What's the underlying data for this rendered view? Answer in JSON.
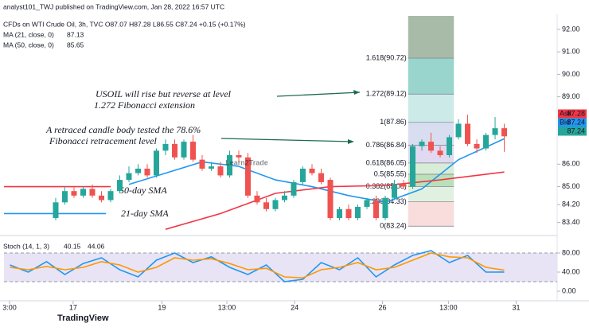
{
  "header": {
    "publisher": "analyst101_TWJ published on TradingView.com, Jan 28, 2022 16:57 UTC",
    "logo": "TradingView"
  },
  "chart_data": {
    "type": "candlestick",
    "symbol": "CFDs on WTI Crude Oil, 3h, TVC O87.07 H87.28 L86.55 C87.24 +0.15 (+0.17%)",
    "watermark": "Learn2Trade",
    "open": [
      83.6,
      84.3,
      84.8,
      84.6,
      84.9,
      84.6,
      84.4,
      84.8,
      85.3,
      85.6,
      85.8,
      85.5,
      86.6,
      86.9,
      86.3,
      87.0,
      86.2,
      85.8,
      85.9,
      85.5,
      86.4,
      86.3,
      84.6,
      84.3,
      84.0,
      84.4,
      84.6,
      85.2,
      85.8,
      85.6,
      85.3,
      83.6,
      84.0,
      83.6,
      84.1,
      84.4,
      83.6,
      84.5,
      85.1,
      85.0,
      86.8,
      87.0,
      86.6,
      86.4,
      87.2,
      87.8,
      86.9,
      86.7,
      87.3,
      87.6
    ],
    "high": [
      84.5,
      85.0,
      85.0,
      85.0,
      85.1,
      84.8,
      84.9,
      85.5,
      85.9,
      86.0,
      86.0,
      86.7,
      87.1,
      87.1,
      87.1,
      87.3,
      86.4,
      86.1,
      86.1,
      86.6,
      86.6,
      86.5,
      84.8,
      84.5,
      84.5,
      84.8,
      85.3,
      85.9,
      86.0,
      85.8,
      85.4,
      84.1,
      84.2,
      84.2,
      84.5,
      84.6,
      84.6,
      85.3,
      85.3,
      86.9,
      87.1,
      87.4,
      86.8,
      87.3,
      88.0,
      88.2,
      87.1,
      87.4,
      88.1,
      87.8
    ],
    "low": [
      83.5,
      84.2,
      84.5,
      84.5,
      84.5,
      84.3,
      84.3,
      84.7,
      85.2,
      85.5,
      85.4,
      85.4,
      86.4,
      86.2,
      86.2,
      86.1,
      85.7,
      85.7,
      85.4,
      85.4,
      86.1,
      84.5,
      84.2,
      83.9,
      83.9,
      84.3,
      84.5,
      85.1,
      85.5,
      85.1,
      83.5,
      83.5,
      83.5,
      83.5,
      84.0,
      83.5,
      83.5,
      84.4,
      84.9,
      84.9,
      86.6,
      86.5,
      86.3,
      86.3,
      87.1,
      86.8,
      86.5,
      86.6,
      87.1,
      86.55
    ],
    "close": [
      84.3,
      84.8,
      84.6,
      84.9,
      84.6,
      84.4,
      84.8,
      85.3,
      85.6,
      85.8,
      85.5,
      86.6,
      86.9,
      86.3,
      87.0,
      86.2,
      85.8,
      85.9,
      85.5,
      86.4,
      86.3,
      84.6,
      84.3,
      84.0,
      84.4,
      84.6,
      85.2,
      85.8,
      85.6,
      85.2,
      83.6,
      84.0,
      83.6,
      84.1,
      84.4,
      83.6,
      84.5,
      85.1,
      85.0,
      86.8,
      87.0,
      86.6,
      86.4,
      87.2,
      87.8,
      86.9,
      86.7,
      87.3,
      87.6,
      87.24
    ],
    "up_color": "#26a69a",
    "down_color": "#ef5350",
    "ma_series": [
      {
        "name": "MA (21, close, 0)",
        "last": 87.13,
        "label": "21-day SMA",
        "color": "#2196f3",
        "x": [
          -5.65,
          5.5,
          5.6,
          8,
          12,
          16,
          20,
          24,
          28,
          32,
          36,
          40,
          44,
          49
        ],
        "values": [
          83.8,
          83.8,
          null,
          85.1,
          85.6,
          86.1,
          85.9,
          85.3,
          85.0,
          84.6,
          84.3,
          84.9,
          86.2,
          87.13
        ]
      },
      {
        "name": "MA (50, close, 0)",
        "last": 85.65,
        "label": "50-day SMA",
        "color": "#f23645",
        "x": [
          -5.65,
          6,
          6.1,
          12,
          18,
          24,
          30,
          36,
          42,
          49
        ],
        "values": [
          85.0,
          85.0,
          null,
          83.1,
          83.8,
          84.7,
          85.0,
          85.05,
          85.3,
          85.65
        ]
      }
    ],
    "fib": {
      "x": [
        38.5,
        43.5
      ],
      "top_color": "#a8bba8",
      "levels": [
        {
          "value": 90.72,
          "label": "1.618(90.72)",
          "color": "#7fc9c0"
        },
        {
          "value": 89.12,
          "label": "1.272(89.12)",
          "color": "#bfe5e2"
        },
        {
          "value": 87.86,
          "label": "1(87.86)",
          "color": "#cfd4ec"
        },
        {
          "value": 86.84,
          "label": "0.786(86.84)",
          "color": "#d9d0ee"
        },
        {
          "value": 86.05,
          "label": "0.618(86.05)",
          "color": "#cde9cd"
        },
        {
          "value": 85.55,
          "label": "0.5(85.55)",
          "color": "#a9d8a9"
        },
        {
          "value": 85.0,
          "label": "0.382(85.00)",
          "color": "#d9eed9"
        },
        {
          "value": 84.33,
          "label": "0.236(84.33)",
          "color": "#f7d3d3"
        },
        {
          "value": 83.24,
          "label": "0(83.24)",
          "color": "#ffffff"
        }
      ]
    },
    "annotations": [
      "USOIL will rise but reverse at  level",
      "1.272 Fibonacci extension",
      "A retraced candle body tested the 78.6%",
      "Fibonacci retracement level"
    ],
    "price_tags": [
      {
        "label": "Ask",
        "value": 87.28,
        "color": "#f23645"
      },
      {
        "label": "Bid",
        "value": 87.24,
        "color": "#2196f3"
      },
      {
        "value": 87.24,
        "color": "#26a69a"
      }
    ],
    "xlim": [
      -5.65,
      54.78
    ],
    "xticks": [
      {
        "value": -5.04,
        "label": "3:00"
      },
      {
        "value": 1.9,
        "label": "17"
      },
      {
        "value": 11.6,
        "label": "19"
      },
      {
        "value": 18.7,
        "label": "13:00"
      },
      {
        "value": 26.1,
        "label": "24"
      },
      {
        "value": 35.7,
        "label": "26"
      },
      {
        "value": 42.9,
        "label": "13:00"
      },
      {
        "value": 50.3,
        "label": "31"
      }
    ],
    "ylim": [
      83.0,
      92.6
    ],
    "yticks": [
      {
        "value": 83.4,
        "label": "83.40"
      },
      {
        "value": 84.2,
        "label": "84.20"
      },
      {
        "value": 85,
        "label": "85.00"
      },
      {
        "value": 86,
        "label": "86.00"
      },
      {
        "value": 89,
        "label": "89.00"
      },
      {
        "value": 90,
        "label": "90.00"
      },
      {
        "value": 91,
        "label": "91.00"
      },
      {
        "value": 92,
        "label": "92.00"
      }
    ],
    "stoch": {
      "name": "Stoch (14, 1, 3)",
      "ylim": [
        0,
        110
      ],
      "band": [
        20,
        80
      ],
      "yticks": [
        {
          "value": 0,
          "label": "0.00"
        },
        {
          "value": 40,
          "label": "40.00"
        },
        {
          "value": 80,
          "label": "80.00"
        }
      ],
      "x": [
        -5,
        -3,
        -1,
        1,
        3,
        5,
        7,
        9,
        11,
        13,
        15,
        17,
        19,
        21,
        23,
        25,
        27,
        29,
        31,
        33,
        35,
        37,
        39,
        41,
        43,
        45,
        47,
        49
      ],
      "series": [
        {
          "name": "%K",
          "color": "#2196f3",
          "values": [
            55,
            40,
            62,
            35,
            58,
            70,
            45,
            30,
            65,
            80,
            60,
            72,
            50,
            35,
            55,
            20,
            25,
            60,
            45,
            70,
            30,
            55,
            75,
            85,
            60,
            75,
            40,
            40.15
          ]
        },
        {
          "name": "%D",
          "color": "#ff9800",
          "values": [
            50,
            45,
            52,
            45,
            50,
            62,
            55,
            40,
            50,
            70,
            65,
            68,
            58,
            45,
            48,
            30,
            28,
            45,
            50,
            60,
            45,
            50,
            65,
            80,
            72,
            70,
            50,
            44.06
          ]
        }
      ]
    }
  }
}
